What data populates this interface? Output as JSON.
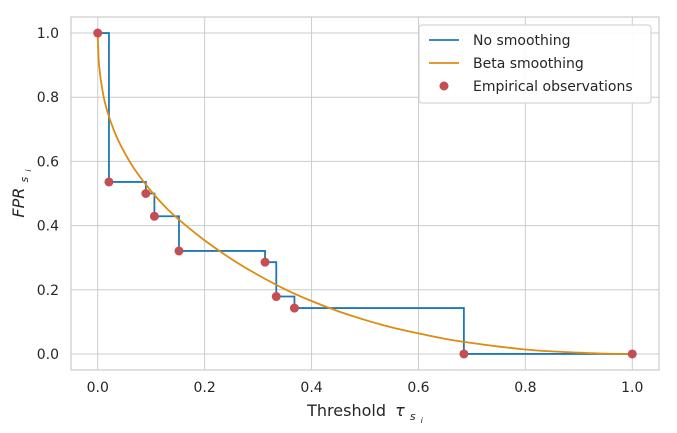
{
  "chart_data": {
    "type": "line",
    "title": "",
    "xlabel": "Threshold",
    "xlabel_math": "τ",
    "xlabel_sub": "s",
    "xlabel_subsub": "i",
    "ylabel": "FPR",
    "ylabel_sub": "s",
    "ylabel_subsub": "i",
    "xlim": [
      -0.05,
      1.05
    ],
    "ylim": [
      -0.05,
      1.05
    ],
    "xticks": [
      0.0,
      0.2,
      0.4,
      0.6,
      0.8,
      1.0
    ],
    "xtick_labels": [
      "0.0",
      "0.2",
      "0.4",
      "0.6",
      "0.8",
      "1.0"
    ],
    "yticks": [
      0.0,
      0.2,
      0.4,
      0.6,
      0.8,
      1.0
    ],
    "ytick_labels": [
      "0.0",
      "0.2",
      "0.4",
      "0.6",
      "0.8",
      "1.0"
    ],
    "grid": true,
    "legend_position": "top-right",
    "series": [
      {
        "name": "No smoothing",
        "kind": "step",
        "color": "#1f77b4",
        "x": [
          0.0,
          0.021,
          0.021,
          0.09,
          0.09,
          0.106,
          0.106,
          0.152,
          0.152,
          0.313,
          0.313,
          0.334,
          0.334,
          0.368,
          0.368,
          0.685,
          0.685,
          1.0
        ],
        "y": [
          1.0,
          1.0,
          0.536,
          0.536,
          0.5,
          0.5,
          0.429,
          0.429,
          0.321,
          0.321,
          0.286,
          0.286,
          0.179,
          0.179,
          0.143,
          0.143,
          0.0,
          0.0
        ]
      },
      {
        "name": "Beta smoothing",
        "kind": "curve",
        "color": "#dd8c11",
        "x": [
          0.0,
          0.0025,
          0.01,
          0.02,
          0.035,
          0.05,
          0.07,
          0.1,
          0.13,
          0.16,
          0.2,
          0.25,
          0.3,
          0.35,
          0.4,
          0.45,
          0.5,
          0.55,
          0.6,
          0.65,
          0.7,
          0.75,
          0.8,
          0.85,
          0.9,
          0.95,
          1.0
        ],
        "y": [
          1.0,
          0.9,
          0.81,
          0.745,
          0.678,
          0.628,
          0.573,
          0.507,
          0.452,
          0.407,
          0.354,
          0.296,
          0.246,
          0.202,
          0.165,
          0.133,
          0.106,
          0.083,
          0.064,
          0.047,
          0.034,
          0.023,
          0.014,
          0.008,
          0.004,
          0.001,
          0.0
        ]
      },
      {
        "name": "Empirical observations",
        "kind": "scatter",
        "color": "#c44e52",
        "x": [
          0.0,
          0.021,
          0.09,
          0.106,
          0.152,
          0.313,
          0.334,
          0.368,
          0.685,
          1.0
        ],
        "y": [
          1.0,
          0.536,
          0.5,
          0.429,
          0.321,
          0.286,
          0.179,
          0.143,
          0.0,
          0.0
        ]
      }
    ]
  }
}
